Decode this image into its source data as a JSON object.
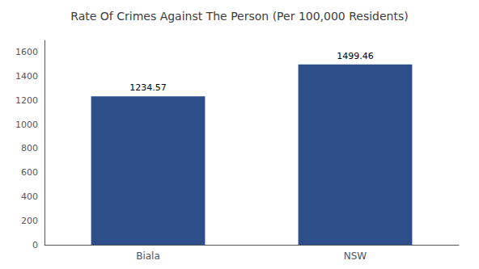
{
  "chart_data": {
    "type": "bar",
    "title": "Rate Of Crimes Against The Person (Per 100,000 Residents)",
    "categories": [
      "Biala",
      "NSW"
    ],
    "values": [
      1234.57,
      1499.46
    ],
    "color": "#2e4e8a",
    "ylim": [
      0,
      1700
    ],
    "yticks": [
      0,
      200,
      400,
      600,
      800,
      1000,
      1200,
      1400,
      1600
    ],
    "grid": false,
    "data_labels": true
  }
}
